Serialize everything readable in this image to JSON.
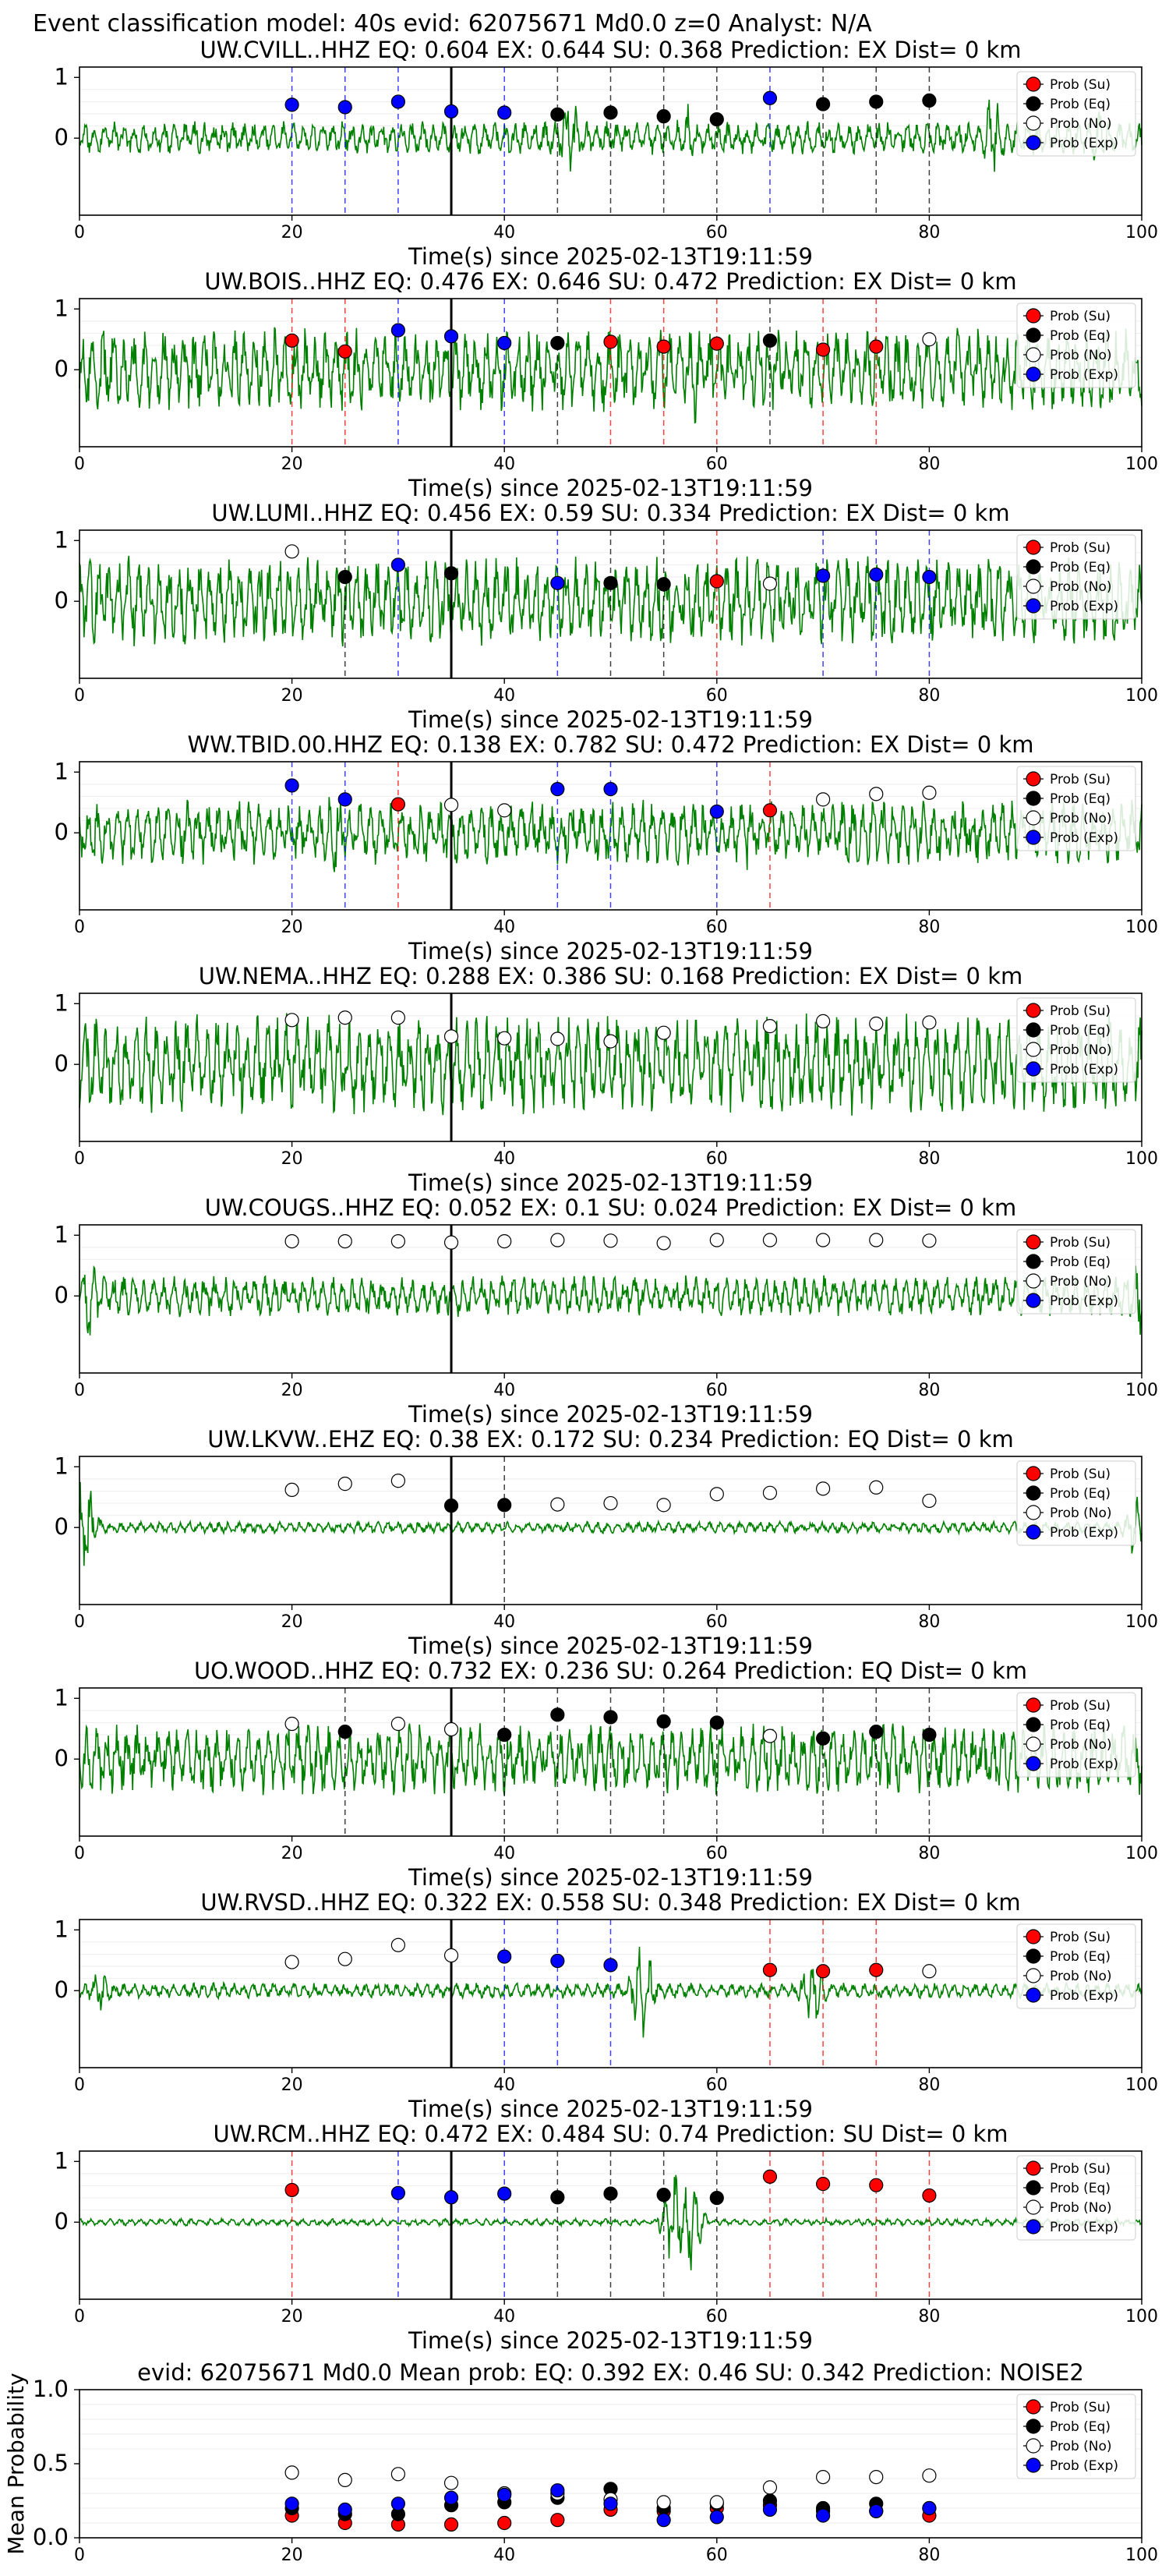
{
  "figure_title": "Event classification model: 40s evid: 62075671 Md0.0 z=0 Analyst: N/A",
  "xlabel": "Time(s) since 2025-02-13T19:11:59",
  "colors": {
    "waveform": "#008000",
    "su": "#ff0000",
    "eq": "#000000",
    "exp": "#0000ff",
    "noise_face": "#ffffff",
    "line_su": "#ff0000",
    "line_eq": "#000000",
    "line_exp": "#0000ff",
    "pick": "#000000"
  },
  "legend_labels": {
    "su": "Prob (Su)",
    "eq": "Prob (Eq)",
    "no": "Prob (No)",
    "exp": "Prob (Exp)"
  },
  "chart_data": [
    {
      "type": "line",
      "station": "UW.CVILL..HHZ",
      "title": "UW.CVILL..HHZ   EQ: 0.604  EX: 0.644  SU: 0.368   Prediction: EX    Dist= 0 km",
      "xlim": [
        0,
        100
      ],
      "x_ticks": [
        0,
        20,
        40,
        60,
        80,
        100
      ],
      "y_ticks": [
        0,
        1
      ],
      "legend": "top-right",
      "pick": 35,
      "amp": 0.28,
      "spikes": [
        [
          46,
          0.9
        ],
        [
          57,
          0.7
        ],
        [
          86,
          0.9
        ],
        [
          96,
          0.6
        ]
      ],
      "seed": 3,
      "points": [
        [
          20,
          0.55,
          "exp"
        ],
        [
          25,
          0.51,
          "exp"
        ],
        [
          30,
          0.6,
          "exp"
        ],
        [
          35,
          0.44,
          "exp"
        ],
        [
          40,
          0.42,
          "exp"
        ],
        [
          45,
          0.39,
          "eq"
        ],
        [
          50,
          0.42,
          "eq"
        ],
        [
          55,
          0.36,
          "eq"
        ],
        [
          60,
          0.31,
          "eq"
        ],
        [
          65,
          0.66,
          "exp"
        ],
        [
          70,
          0.56,
          "eq"
        ],
        [
          75,
          0.6,
          "eq"
        ],
        [
          80,
          0.62,
          "eq"
        ]
      ]
    },
    {
      "type": "line",
      "station": "UW.BOIS..HHZ",
      "title": "UW.BOIS..HHZ   EQ: 0.476  EX: 0.646  SU: 0.472   Prediction: EX    Dist= 0 km",
      "xlim": [
        0,
        100
      ],
      "x_ticks": [
        0,
        20,
        40,
        60,
        80,
        100
      ],
      "y_ticks": [
        0,
        1
      ],
      "legend": "top-right",
      "pick": 35,
      "amp": 0.7,
      "spikes": [
        [
          58,
          1.0
        ]
      ],
      "seed": 7,
      "points": [
        [
          20,
          0.48,
          "su"
        ],
        [
          25,
          0.3,
          "su"
        ],
        [
          30,
          0.65,
          "exp"
        ],
        [
          35,
          0.55,
          "exp"
        ],
        [
          40,
          0.44,
          "exp"
        ],
        [
          45,
          0.44,
          "eq"
        ],
        [
          50,
          0.46,
          "su"
        ],
        [
          55,
          0.38,
          "su"
        ],
        [
          60,
          0.43,
          "su"
        ],
        [
          65,
          0.48,
          "eq"
        ],
        [
          70,
          0.33,
          "su"
        ],
        [
          75,
          0.38,
          "su"
        ],
        [
          80,
          0.5,
          "no"
        ]
      ]
    },
    {
      "type": "line",
      "station": "UW.LUMI..HHZ",
      "title": "UW.LUMI..HHZ   EQ: 0.456  EX: 0.59  SU: 0.334   Prediction: EX    Dist= 0 km",
      "xlim": [
        0,
        100
      ],
      "x_ticks": [
        0,
        20,
        40,
        60,
        80,
        100
      ],
      "y_ticks": [
        0,
        1
      ],
      "legend": "top-right",
      "pick": 35,
      "amp": 0.75,
      "spikes": [],
      "seed": 11,
      "points": [
        [
          20,
          0.82,
          "no"
        ],
        [
          25,
          0.4,
          "eq"
        ],
        [
          30,
          0.6,
          "exp"
        ],
        [
          35,
          0.46,
          "eq"
        ],
        [
          45,
          0.3,
          "exp"
        ],
        [
          50,
          0.3,
          "eq"
        ],
        [
          55,
          0.28,
          "eq"
        ],
        [
          60,
          0.33,
          "su"
        ],
        [
          65,
          0.29,
          "no"
        ],
        [
          70,
          0.42,
          "exp"
        ],
        [
          75,
          0.44,
          "exp"
        ],
        [
          80,
          0.4,
          "exp"
        ]
      ]
    },
    {
      "type": "line",
      "station": "WW.TBID.00.HHZ",
      "title": "WW.TBID.00.HHZ   EQ: 0.138  EX: 0.782  SU: 0.472   Prediction: EX    Dist= 0 km",
      "xlim": [
        0,
        100
      ],
      "x_ticks": [
        0,
        20,
        40,
        60,
        80,
        100
      ],
      "y_ticks": [
        0,
        1
      ],
      "legend": "top-right",
      "pick": 35,
      "amp": 0.55,
      "spikes": [
        [
          24,
          0.9
        ],
        [
          63,
          0.8
        ]
      ],
      "seed": 13,
      "points": [
        [
          20,
          0.78,
          "exp"
        ],
        [
          25,
          0.55,
          "exp"
        ],
        [
          30,
          0.47,
          "su"
        ],
        [
          35,
          0.46,
          "no"
        ],
        [
          40,
          0.37,
          "no"
        ],
        [
          45,
          0.72,
          "exp"
        ],
        [
          50,
          0.72,
          "exp"
        ],
        [
          60,
          0.35,
          "exp"
        ],
        [
          65,
          0.37,
          "su"
        ],
        [
          70,
          0.55,
          "no"
        ],
        [
          75,
          0.64,
          "no"
        ],
        [
          80,
          0.66,
          "no"
        ]
      ]
    },
    {
      "type": "line",
      "station": "UW.NEMA..HHZ",
      "title": "UW.NEMA..HHZ   EQ: 0.288  EX: 0.386  SU: 0.168   Prediction: EX    Dist= 0 km",
      "xlim": [
        0,
        100
      ],
      "x_ticks": [
        0,
        20,
        40,
        60,
        80,
        100
      ],
      "y_ticks": [
        0,
        1
      ],
      "legend": "top-right",
      "pick": 35,
      "amp": 0.85,
      "spikes": [],
      "seed": 17,
      "points": [
        [
          20,
          0.73,
          "no"
        ],
        [
          25,
          0.77,
          "no"
        ],
        [
          30,
          0.77,
          "no"
        ],
        [
          35,
          0.46,
          "no"
        ],
        [
          40,
          0.43,
          "no"
        ],
        [
          45,
          0.42,
          "no"
        ],
        [
          50,
          0.38,
          "no"
        ],
        [
          55,
          0.52,
          "no"
        ],
        [
          65,
          0.63,
          "no"
        ],
        [
          70,
          0.71,
          "no"
        ],
        [
          75,
          0.67,
          "no"
        ],
        [
          80,
          0.69,
          "no"
        ]
      ]
    },
    {
      "type": "line",
      "station": "UW.COUGS..HHZ",
      "title": "UW.COUGS..HHZ   EQ: 0.052  EX: 0.1  SU: 0.024   Prediction: EX    Dist= 0 km",
      "xlim": [
        0,
        100
      ],
      "x_ticks": [
        0,
        20,
        40,
        60,
        80,
        100
      ],
      "y_ticks": [
        0,
        1
      ],
      "legend": "top-right",
      "pick": 35,
      "amp": 0.35,
      "spikes": [
        [
          0.8,
          0.9
        ],
        [
          99.6,
          0.8
        ]
      ],
      "seed": 19,
      "points": [
        [
          20,
          0.9,
          "no"
        ],
        [
          25,
          0.9,
          "no"
        ],
        [
          30,
          0.9,
          "no"
        ],
        [
          35,
          0.88,
          "no"
        ],
        [
          40,
          0.9,
          "no"
        ],
        [
          45,
          0.92,
          "no"
        ],
        [
          50,
          0.91,
          "no"
        ],
        [
          55,
          0.87,
          "no"
        ],
        [
          60,
          0.92,
          "no"
        ],
        [
          65,
          0.92,
          "no"
        ],
        [
          70,
          0.92,
          "no"
        ],
        [
          75,
          0.92,
          "no"
        ],
        [
          80,
          0.91,
          "no"
        ]
      ]
    },
    {
      "type": "line",
      "station": "UW.LKVW..EHZ",
      "title": "UW.LKVW..EHZ   EQ: 0.38  EX: 0.172  SU: 0.234   Prediction: EQ    Dist= 0 km",
      "xlim": [
        0,
        100
      ],
      "x_ticks": [
        0,
        20,
        40,
        60,
        80,
        100
      ],
      "y_ticks": [
        0,
        1
      ],
      "legend": "top-right",
      "pick": 35,
      "amp": 0.1,
      "spikes": [
        [
          0.5,
          1.0
        ],
        [
          99.5,
          0.7
        ]
      ],
      "seed": 23,
      "points": [
        [
          20,
          0.62,
          "no"
        ],
        [
          25,
          0.72,
          "no"
        ],
        [
          30,
          0.77,
          "no"
        ],
        [
          35,
          0.36,
          "eq"
        ],
        [
          40,
          0.37,
          "eq"
        ],
        [
          45,
          0.38,
          "no"
        ],
        [
          50,
          0.4,
          "no"
        ],
        [
          55,
          0.37,
          "no"
        ],
        [
          60,
          0.55,
          "no"
        ],
        [
          65,
          0.57,
          "no"
        ],
        [
          70,
          0.64,
          "no"
        ],
        [
          75,
          0.66,
          "no"
        ],
        [
          80,
          0.44,
          "no"
        ]
      ]
    },
    {
      "type": "line",
      "station": "UO.WOOD..HHZ",
      "title": "UO.WOOD..HHZ   EQ: 0.732  EX: 0.236  SU: 0.264   Prediction: EQ    Dist= 0 km",
      "xlim": [
        0,
        100
      ],
      "x_ticks": [
        0,
        20,
        40,
        60,
        80,
        100
      ],
      "y_ticks": [
        0,
        1
      ],
      "legend": "top-right",
      "pick": 35,
      "amp": 0.6,
      "spikes": [],
      "seed": 29,
      "points": [
        [
          20,
          0.58,
          "no"
        ],
        [
          25,
          0.45,
          "eq"
        ],
        [
          30,
          0.58,
          "no"
        ],
        [
          35,
          0.49,
          "no"
        ],
        [
          40,
          0.4,
          "eq"
        ],
        [
          45,
          0.73,
          "eq"
        ],
        [
          50,
          0.69,
          "eq"
        ],
        [
          55,
          0.62,
          "eq"
        ],
        [
          60,
          0.6,
          "eq"
        ],
        [
          65,
          0.38,
          "no"
        ],
        [
          70,
          0.34,
          "eq"
        ],
        [
          75,
          0.45,
          "eq"
        ],
        [
          80,
          0.4,
          "eq"
        ]
      ]
    },
    {
      "type": "line",
      "station": "UW.RVSD..HHZ",
      "title": "UW.RVSD..HHZ   EQ: 0.322  EX: 0.558  SU: 0.348   Prediction: EX    Dist= 0 km",
      "xlim": [
        0,
        100
      ],
      "x_ticks": [
        0,
        20,
        40,
        60,
        80,
        100
      ],
      "y_ticks": [
        0,
        1
      ],
      "legend": "top-right",
      "pick": 35,
      "amp": 0.13,
      "spikes": [
        [
          53,
          1.0
        ],
        [
          69,
          0.7
        ],
        [
          2,
          0.4
        ]
      ],
      "seed": 31,
      "points": [
        [
          20,
          0.47,
          "no"
        ],
        [
          25,
          0.52,
          "no"
        ],
        [
          30,
          0.75,
          "no"
        ],
        [
          35,
          0.58,
          "no"
        ],
        [
          40,
          0.56,
          "exp"
        ],
        [
          45,
          0.49,
          "exp"
        ],
        [
          50,
          0.42,
          "exp"
        ],
        [
          65,
          0.34,
          "su"
        ],
        [
          70,
          0.32,
          "su"
        ],
        [
          75,
          0.34,
          "su"
        ],
        [
          80,
          0.32,
          "no"
        ]
      ]
    },
    {
      "type": "line",
      "station": "UW.RCM..HHZ",
      "title": "UW.RCM..HHZ   EQ: 0.472  EX: 0.484  SU: 0.74   Prediction: SU    Dist= 0 km",
      "xlim": [
        0,
        100
      ],
      "x_ticks": [
        0,
        20,
        40,
        60,
        80,
        100
      ],
      "y_ticks": [
        0,
        1
      ],
      "legend": "top-right",
      "pick": 35,
      "amp": 0.06,
      "spikes": [
        [
          56,
          1.0
        ],
        [
          57.5,
          0.9
        ]
      ],
      "seed": 37,
      "points": [
        [
          20,
          0.53,
          "su"
        ],
        [
          30,
          0.48,
          "exp"
        ],
        [
          35,
          0.41,
          "exp"
        ],
        [
          40,
          0.47,
          "exp"
        ],
        [
          45,
          0.41,
          "eq"
        ],
        [
          50,
          0.47,
          "eq"
        ],
        [
          55,
          0.45,
          "eq"
        ],
        [
          60,
          0.4,
          "eq"
        ],
        [
          65,
          0.75,
          "su"
        ],
        [
          70,
          0.63,
          "su"
        ],
        [
          75,
          0.61,
          "su"
        ],
        [
          80,
          0.44,
          "su"
        ]
      ]
    },
    {
      "type": "scatter",
      "station": "mean",
      "title": "evid: 62075671   Md0.0   Mean prob:   EQ: 0.392  EX: 0.46  SU: 0.342   Prediction: NOISE2",
      "ylabel": "Mean Probability",
      "xlim": [
        0,
        100
      ],
      "ylim": [
        0,
        1
      ],
      "x_ticks": [
        0,
        20,
        40,
        60,
        80,
        100
      ],
      "y_ticks": [
        0.0,
        0.5,
        1.0
      ],
      "legend": "top-right",
      "x": [
        20,
        25,
        30,
        35,
        40,
        45,
        50,
        55,
        60,
        65,
        70,
        75,
        80
      ],
      "series": [
        {
          "name": "Prob (Su)",
          "key": "su",
          "values": [
            0.15,
            0.1,
            0.09,
            0.09,
            0.1,
            0.12,
            0.19,
            0.18,
            0.2,
            0.22,
            0.18,
            0.18,
            0.15
          ]
        },
        {
          "name": "Prob (Eq)",
          "key": "eq",
          "values": [
            0.2,
            0.16,
            0.16,
            0.22,
            0.24,
            0.27,
            0.33,
            0.2,
            0.23,
            0.25,
            0.2,
            0.23,
            0.2
          ]
        },
        {
          "name": "Prob (No)",
          "key": "no",
          "values": [
            0.44,
            0.39,
            0.43,
            0.37,
            0.3,
            0.3,
            0.26,
            0.24,
            0.24,
            0.34,
            0.41,
            0.41,
            0.42
          ]
        },
        {
          "name": "Prob (Exp)",
          "key": "exp",
          "values": [
            0.23,
            0.19,
            0.23,
            0.27,
            0.29,
            0.32,
            0.23,
            0.12,
            0.14,
            0.19,
            0.15,
            0.18,
            0.2
          ]
        }
      ]
    }
  ]
}
